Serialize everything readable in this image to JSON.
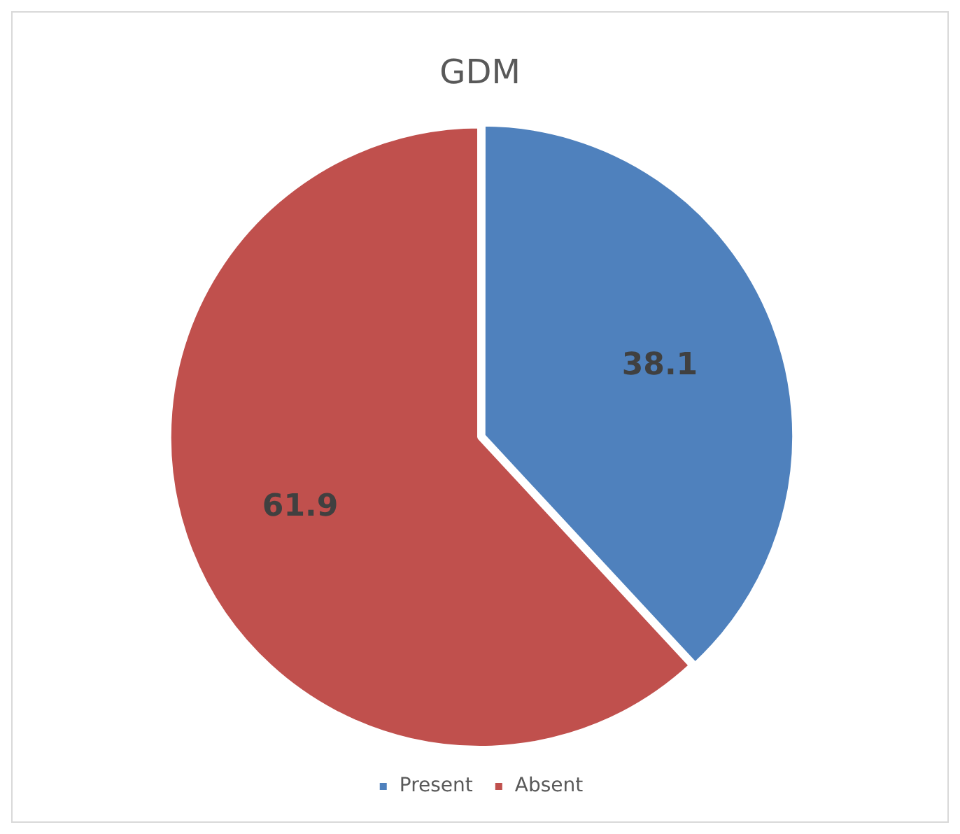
{
  "chart_data": {
    "type": "pie",
    "title": "GDM",
    "categories": [
      "Present",
      "Absent"
    ],
    "values": [
      38.1,
      61.9
    ],
    "colors": [
      "#4f81bd",
      "#c0504d"
    ],
    "data_labels": true,
    "legend": "bottom"
  }
}
